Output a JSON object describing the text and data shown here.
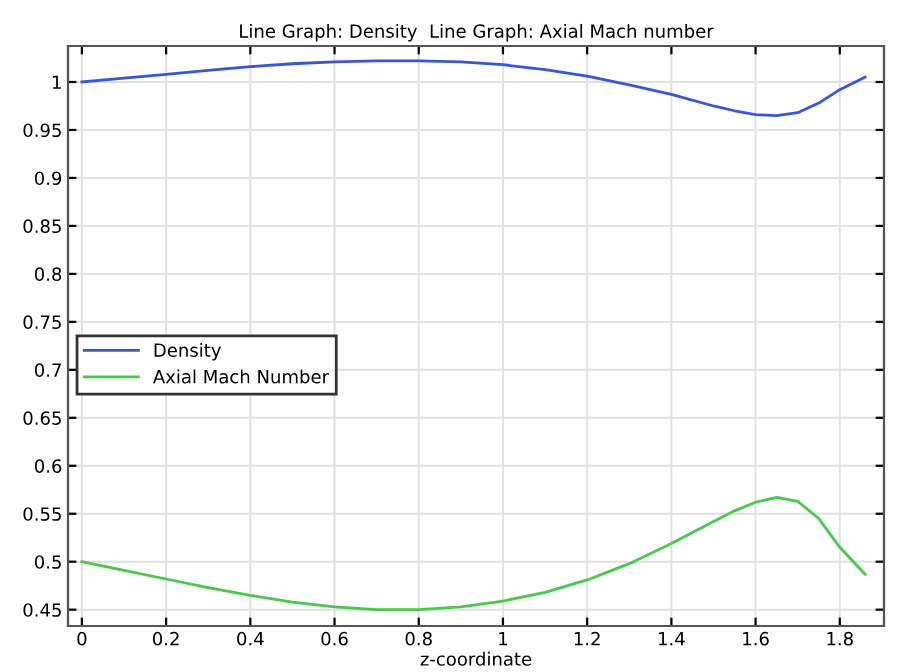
{
  "chart_data": {
    "type": "line",
    "title": "Line Graph: Density  Line Graph: Axial Mach number",
    "xlabel": "z-coordinate",
    "series": [
      {
        "name": "Density",
        "color": "#3355ee",
        "x": [
          0,
          0.1,
          0.2,
          0.3,
          0.4,
          0.5,
          0.6,
          0.7,
          0.8,
          0.9,
          1.0,
          1.1,
          1.2,
          1.3,
          1.4,
          1.5,
          1.55,
          1.6,
          1.65,
          1.7,
          1.75,
          1.8,
          1.86
        ],
        "values": [
          1.0,
          1.004,
          1.008,
          1.012,
          1.016,
          1.019,
          1.021,
          1.022,
          1.022,
          1.021,
          1.018,
          1.013,
          1.006,
          0.997,
          0.987,
          0.975,
          0.97,
          0.966,
          0.965,
          0.968,
          0.978,
          0.992,
          1.005
        ]
      },
      {
        "name": "Axial Mach Number",
        "color": "#44cc44",
        "x": [
          0,
          0.1,
          0.2,
          0.3,
          0.4,
          0.5,
          0.6,
          0.7,
          0.8,
          0.9,
          1.0,
          1.1,
          1.2,
          1.3,
          1.4,
          1.5,
          1.55,
          1.6,
          1.65,
          1.7,
          1.75,
          1.8,
          1.86
        ],
        "values": [
          0.5,
          0.491,
          0.482,
          0.473,
          0.465,
          0.458,
          0.453,
          0.45,
          0.45,
          0.453,
          0.459,
          0.468,
          0.481,
          0.498,
          0.519,
          0.542,
          0.553,
          0.562,
          0.567,
          0.563,
          0.545,
          0.515,
          0.487
        ]
      }
    ],
    "xlim": [
      -0.033,
      1.905
    ],
    "ylim": [
      0.433,
      1.0375
    ],
    "xticks": [
      0,
      0.2,
      0.4,
      0.6,
      0.8,
      1,
      1.2,
      1.4,
      1.6,
      1.8
    ],
    "yticks": [
      0.45,
      0.5,
      0.55,
      0.6,
      0.65,
      0.7,
      0.75,
      0.8,
      0.85,
      0.9,
      0.95,
      1
    ],
    "grid": true,
    "legend": "left",
    "line_style": "solid",
    "marker": "none"
  }
}
